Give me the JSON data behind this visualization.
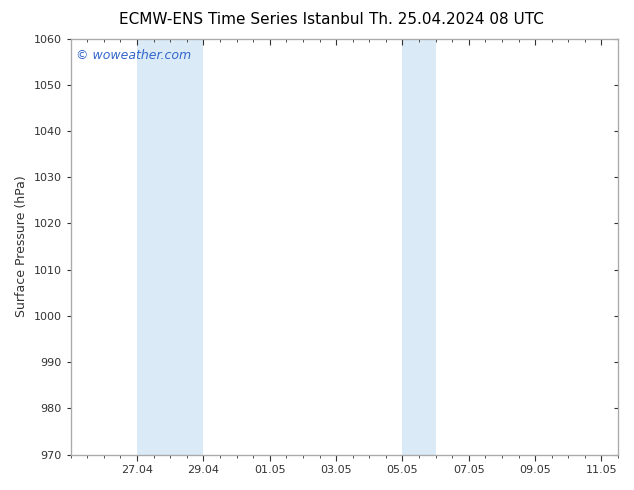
{
  "title_left": "ECMW-ENS Time Series Istanbul",
  "title_right": "Th. 25.04.2024 08 UTC",
  "ylabel": "Surface Pressure (hPa)",
  "ylim": [
    970,
    1060
  ],
  "ytick_major_step": 10,
  "background_color": "#ffffff",
  "plot_bg_color": "#ffffff",
  "watermark": "© woweather.com",
  "watermark_color": "#3366cc",
  "shaded_band_color": "#daeaf7",
  "shaded_bands": [
    {
      "x_start": 1.0,
      "x_end": 2.0
    },
    {
      "x_start": 2.0,
      "x_end": 3.0
    },
    {
      "x_start": 8.5,
      "x_end": 9.5
    },
    {
      "x_start": 9.5,
      "x_end": 10.5
    }
  ],
  "x_tick_labels": [
    "27.04",
    "29.04",
    "01.05",
    "03.05",
    "05.05",
    "07.05",
    "09.05",
    "11.05"
  ],
  "x_tick_positions": [
    1,
    3,
    5,
    7,
    9,
    11,
    13,
    15
  ],
  "xlim": [
    0.0,
    16.0
  ],
  "title_fontsize": 11,
  "ylabel_fontsize": 9,
  "tick_fontsize": 8,
  "watermark_fontsize": 9,
  "spine_color": "#aaaaaa",
  "tick_color": "#333333"
}
